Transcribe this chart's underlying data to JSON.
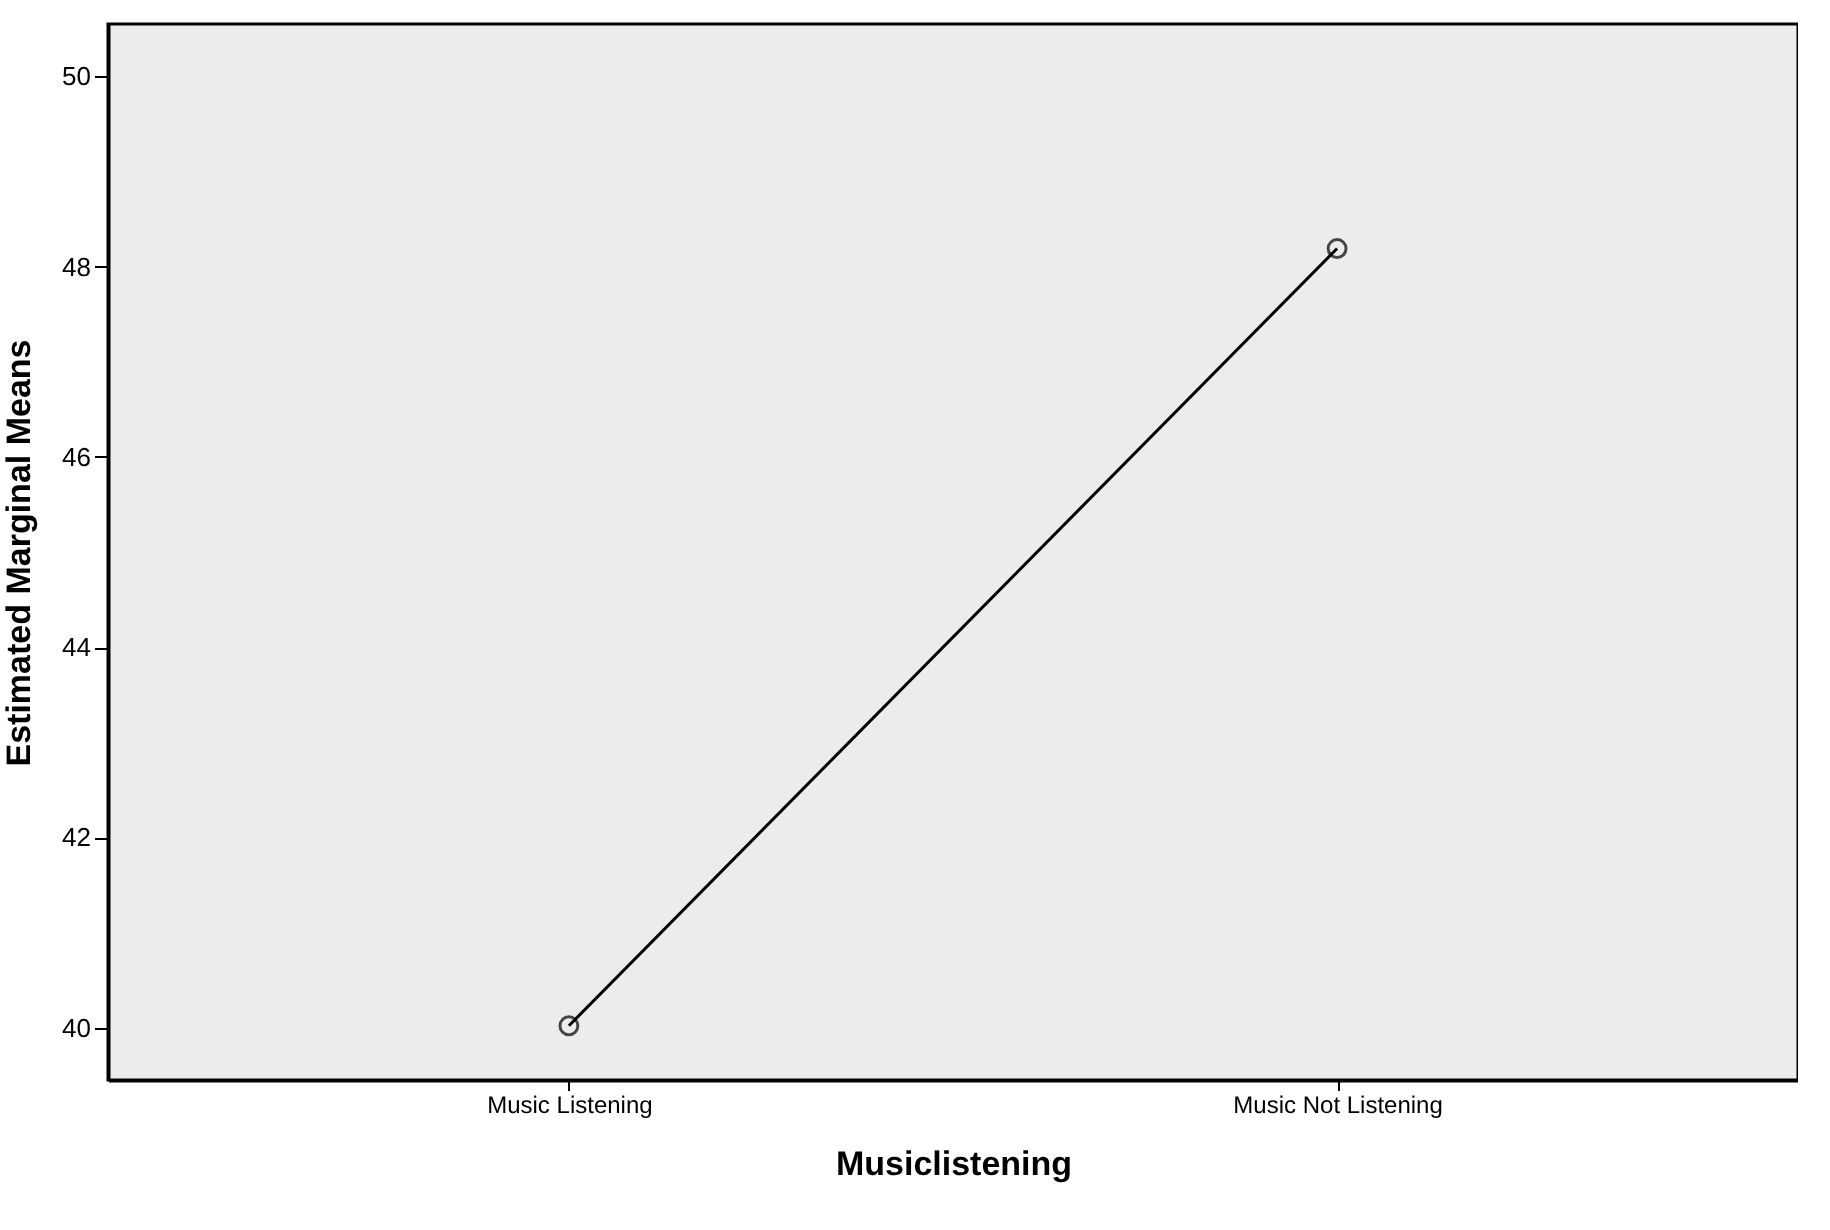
{
  "chart_data": {
    "type": "line",
    "xlabel": "Musiclistening",
    "ylabel": "Estimated Marginal Means",
    "categories": [
      "Music Listening",
      "Music Not Listening"
    ],
    "series": [
      {
        "color": "#000000",
        "values": [
          40.02,
          48.19
        ]
      }
    ],
    "ylim": [
      39.45,
      50.55
    ],
    "yticks": [
      40,
      42,
      44,
      46,
      48,
      50
    ],
    "marker": "circle",
    "line_style": "solid",
    "grid": false
  }
}
